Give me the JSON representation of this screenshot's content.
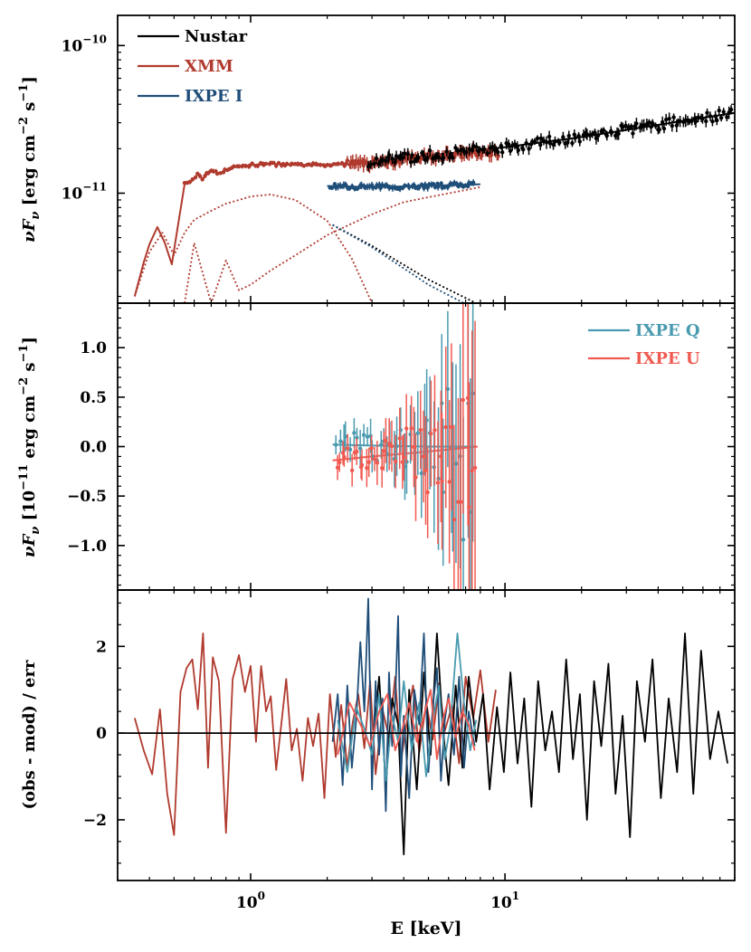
{
  "chart_data": [
    {
      "type": "line",
      "panel": "top",
      "xlabel": "",
      "ylabel": "νF_ν [erg cm⁻² s⁻¹]",
      "xlim": [
        0.3,
        80
      ],
      "ylim": [
        1.8e-12,
        1.6e-10
      ],
      "xscale": "log",
      "yscale": "log",
      "yticks": [
        {
          "value": 1e-10,
          "base": "10",
          "exp": "−10"
        },
        {
          "value": 1e-11,
          "base": "10",
          "exp": "−11"
        }
      ],
      "legend_position": "top-left",
      "legend": [
        {
          "label": "Nustar",
          "color": "#000000"
        },
        {
          "label": "XMM",
          "color": "#b03a2e"
        },
        {
          "label": "IXPE I",
          "color": "#1f4e79"
        }
      ],
      "series": [
        {
          "name": "XMM model",
          "color": "#b03a2e",
          "style": "solid",
          "x": [
            0.35,
            0.38,
            0.4,
            0.43,
            0.46,
            0.49,
            0.52,
            0.55,
            0.58,
            0.62,
            0.65,
            0.7,
            0.75,
            0.8,
            0.9,
            1.0,
            1.2,
            1.5,
            2.0,
            3.0,
            5.0,
            7.0,
            9.0
          ],
          "values": [
            2e-12,
            3.4e-12,
            4.5e-12,
            5.9e-12,
            4.6e-12,
            3.3e-12,
            6.3e-12,
            1.15e-11,
            1.18e-11,
            1.35e-11,
            1.25e-11,
            1.45e-11,
            1.35e-11,
            1.45e-11,
            1.52e-11,
            1.55e-11,
            1.58e-11,
            1.55e-11,
            1.55e-11,
            1.6e-11,
            1.75e-11,
            1.85e-11,
            1.9e-11
          ]
        },
        {
          "name": "Nustar model",
          "color": "#000000",
          "style": "solid",
          "x": [
            2.8,
            5.0,
            10.0,
            20.0,
            40.0,
            80.0
          ],
          "values": [
            1.62e-11,
            1.8e-11,
            2.05e-11,
            2.4e-11,
            2.9e-11,
            3.5e-11
          ]
        },
        {
          "name": "IXPE I model",
          "color": "#1f4e79",
          "style": "solid",
          "x": [
            2.0,
            3.0,
            5.0,
            8.0
          ],
          "values": [
            1.12e-11,
            1.1e-11,
            1.12e-11,
            1.15e-11
          ]
        },
        {
          "name": "XMM component 1",
          "color": "#b03a2e",
          "style": "dotted",
          "x": [
            0.35,
            0.4,
            0.45,
            0.5,
            0.55,
            0.6,
            0.7,
            0.8,
            0.9,
            1.0,
            1.2,
            1.5,
            2.0,
            2.5,
            3.0
          ],
          "values": [
            2e-12,
            4e-12,
            5.4e-12,
            3.8e-12,
            5.4e-12,
            6.6e-12,
            7.6e-12,
            8.5e-12,
            9e-12,
            9.5e-12,
            9.8e-12,
            9e-12,
            6.5e-12,
            3.6e-12,
            1.8e-12
          ]
        },
        {
          "name": "XMM component 2",
          "color": "#b03a2e",
          "style": "dotted",
          "x": [
            0.55,
            0.6,
            0.7,
            0.8,
            0.9,
            1.0,
            1.2,
            1.5,
            2.0,
            3.0,
            4.0,
            5.5,
            7.0,
            8.0
          ],
          "values": [
            1.8e-12,
            4.6e-12,
            1.8e-12,
            3.5e-12,
            2.2e-12,
            2.4e-12,
            3e-12,
            3.8e-12,
            5.2e-12,
            7.2e-12,
            8.7e-12,
            9.7e-12,
            1.05e-11,
            1.1e-11
          ]
        },
        {
          "name": "Nustar component",
          "color": "#000000",
          "style": "dotted",
          "x": [
            2.1,
            3.0,
            5.0,
            7.7
          ],
          "values": [
            6.1e-12,
            4.4e-12,
            2.6e-12,
            1.8e-12
          ]
        },
        {
          "name": "IXPE component",
          "color": "#1f4e79",
          "style": "dotted",
          "x": [
            2.1,
            3.0,
            5.0,
            6.9
          ],
          "values": [
            6.1e-12,
            4.3e-12,
            2.4e-12,
            1.8e-12
          ]
        }
      ]
    },
    {
      "type": "line",
      "panel": "middle",
      "xlabel": "",
      "ylabel": "νF_ν [10⁻¹¹ erg cm⁻² s⁻¹]",
      "xlim": [
        0.3,
        80
      ],
      "ylim": [
        -1.45,
        1.45
      ],
      "xscale": "log",
      "yticks": [
        "−1.0",
        "−0.5",
        "0.0",
        "0.5",
        "1.0"
      ],
      "legend_position": "top-right",
      "legend": [
        {
          "label": "IXPE Q",
          "color": "#4a9bb0"
        },
        {
          "label": "IXPE U",
          "color": "#f05a50"
        }
      ],
      "series": [
        {
          "name": "IXPE Q model",
          "color": "#4a9bb0",
          "style": "solid",
          "x": [
            2.1,
            3.0,
            5.0,
            7.8
          ],
          "values": [
            0.02,
            0.01,
            0.0,
            0.0
          ]
        },
        {
          "name": "IXPE U model",
          "color": "#f05a50",
          "style": "solid",
          "x": [
            2.1,
            3.0,
            4.5,
            6.0,
            7.8
          ],
          "values": [
            -0.14,
            -0.1,
            -0.06,
            -0.03,
            0.0
          ]
        }
      ]
    },
    {
      "type": "line",
      "panel": "bottom",
      "xlabel": "E [keV]",
      "ylabel": "(obs - mod) / err",
      "xlim": [
        0.3,
        80
      ],
      "ylim": [
        -3.4,
        3.3
      ],
      "xscale": "log",
      "xticks": [
        {
          "value": 1,
          "base": "10",
          "exp": "0"
        },
        {
          "value": 10,
          "base": "10",
          "exp": "1"
        }
      ],
      "yticks": [
        "−2",
        "0",
        "2"
      ],
      "reference_line": 0,
      "series": [
        {
          "name": "XMM",
          "color": "#b03a2e",
          "x": [
            0.35,
            0.38,
            0.41,
            0.44,
            0.47,
            0.5,
            0.53,
            0.56,
            0.59,
            0.62,
            0.65,
            0.68,
            0.71,
            0.75,
            0.8,
            0.85,
            0.9,
            0.95,
            1.0,
            1.05,
            1.1,
            1.15,
            1.2,
            1.26,
            1.32,
            1.38,
            1.45,
            1.52,
            1.6,
            1.68,
            1.76,
            1.85,
            1.95,
            2.05,
            2.16,
            2.27,
            2.4,
            2.52,
            2.65,
            2.8,
            2.95,
            3.1,
            3.3,
            3.5,
            3.7,
            3.9,
            4.1,
            4.35,
            4.6,
            4.9,
            5.2,
            5.5,
            5.8,
            6.2,
            6.6,
            7.0,
            7.5,
            8.0,
            8.6,
            9.2
          ],
          "values": [
            0.35,
            -0.4,
            -0.95,
            0.55,
            -1.4,
            -2.35,
            0.95,
            1.5,
            1.7,
            0.55,
            2.3,
            -0.8,
            1.75,
            1.2,
            -2.3,
            1.25,
            1.8,
            0.95,
            1.55,
            -0.2,
            1.55,
            0.5,
            0.85,
            -0.85,
            0.2,
            1.25,
            -0.4,
            0.1,
            -1.1,
            0.35,
            -0.3,
            0.45,
            -1.5,
            0.9,
            -0.55,
            0.65,
            -0.8,
            0.25,
            0.9,
            -0.35,
            1.2,
            -0.95,
            0.55,
            -0.1,
            1.3,
            -0.65,
            0.2,
            1.1,
            -0.45,
            0.7,
            -0.15,
            1.15,
            0.05,
            0.65,
            -0.7,
            1.3,
            0.35,
            1.45,
            -0.2,
            1.0
          ]
        },
        {
          "name": "Nustar",
          "color": "#000000",
          "x": [
            3.0,
            3.2,
            3.4,
            3.6,
            3.8,
            4.0,
            4.2,
            4.5,
            4.8,
            5.1,
            5.4,
            5.7,
            6.0,
            6.4,
            6.8,
            7.2,
            7.7,
            8.2,
            8.7,
            9.3,
            9.9,
            10.5,
            11.2,
            11.9,
            12.7,
            13.5,
            14.4,
            15.3,
            16.3,
            17.4,
            18.5,
            19.7,
            21.0,
            22.4,
            23.9,
            25.5,
            27.2,
            29.0,
            31.0,
            33.0,
            35.5,
            38.0,
            41.0,
            44.0,
            47.5,
            51.0,
            55.0,
            59.0,
            64.0,
            69.0,
            75.0
          ],
          "values": [
            -0.6,
            1.3,
            -1.2,
            0.8,
            0.2,
            -2.8,
            1.0,
            -1.3,
            1.4,
            -0.5,
            2.3,
            0.1,
            -1.2,
            1.1,
            -0.8,
            1.3,
            -0.2,
            0.9,
            -1.3,
            0.6,
            -0.9,
            1.4,
            -0.7,
            0.8,
            -1.7,
            1.2,
            -0.4,
            0.5,
            -0.9,
            1.7,
            -0.6,
            0.9,
            -2.0,
            1.2,
            -0.3,
            1.6,
            -1.4,
            0.4,
            -2.4,
            1.2,
            -0.2,
            1.7,
            -1.5,
            0.8,
            -0.9,
            2.3,
            -1.4,
            1.9,
            -0.6,
            0.5,
            -0.7
          ]
        },
        {
          "name": "IXPE I",
          "color": "#1f4e79",
          "x": [
            2.1,
            2.2,
            2.3,
            2.4,
            2.5,
            2.6,
            2.7,
            2.8,
            2.9,
            3.0,
            3.1,
            3.2,
            3.3,
            3.4,
            3.5,
            3.6,
            3.7,
            3.8,
            3.9,
            4.0,
            4.2,
            4.4,
            4.6,
            4.8,
            5.0,
            5.2,
            5.4,
            5.6,
            5.8,
            6.0,
            6.3,
            6.6,
            6.9,
            7.2,
            7.6
          ],
          "values": [
            -0.2,
            0.9,
            -1.2,
            1.1,
            -0.8,
            0.3,
            2.1,
            0.5,
            3.1,
            -1.3,
            1.2,
            -0.5,
            0.8,
            -1.8,
            1.4,
            -0.3,
            0.7,
            2.7,
            -1.0,
            0.4,
            -1.5,
            1.0,
            0.2,
            2.3,
            -0.9,
            0.6,
            1.5,
            -1.1,
            0.3,
            0.9,
            -0.5,
            1.3,
            -0.8,
            0.5,
            -0.3
          ]
        },
        {
          "name": "IXPE Q",
          "color": "#4a9bb0",
          "x": [
            2.2,
            2.4,
            2.6,
            2.8,
            3.0,
            3.2,
            3.4,
            3.6,
            3.8,
            4.0,
            4.3,
            4.6,
            4.9,
            5.2,
            5.5,
            5.8,
            6.1,
            6.5,
            6.9,
            7.3,
            7.7
          ],
          "values": [
            0.3,
            -0.9,
            0.6,
            0.1,
            -0.5,
            0.9,
            -1.1,
            0.4,
            -0.2,
            1.2,
            -0.4,
            0.7,
            -1.0,
            0.3,
            1.1,
            -0.6,
            0.2,
            2.3,
            0.7,
            -0.4,
            0.3
          ]
        },
        {
          "name": "IXPE U",
          "color": "#f05a50",
          "x": [
            2.2,
            2.45,
            2.7,
            2.95,
            3.2,
            3.45,
            3.7,
            3.95,
            4.2,
            4.5,
            4.8,
            5.1,
            5.4,
            5.7,
            6.0,
            6.4,
            6.8,
            7.2,
            7.6
          ],
          "values": [
            -0.5,
            0.7,
            0.2,
            -0.3,
            0.5,
            0.9,
            -0.4,
            0.1,
            0.7,
            -0.2,
            0.4,
            1.0,
            -0.6,
            0.3,
            0.8,
            -0.1,
            0.5,
            0.2,
            -0.4
          ]
        }
      ]
    }
  ]
}
